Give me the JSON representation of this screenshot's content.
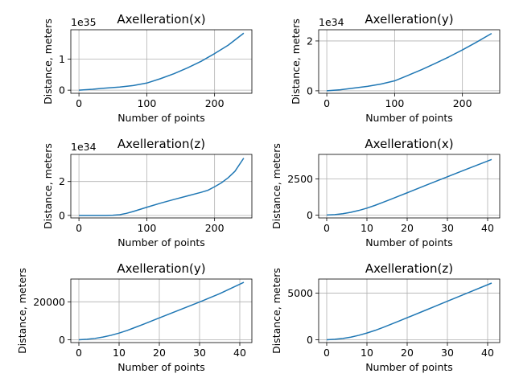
{
  "chart_data": [
    {
      "type": "line",
      "title": "Axelleration(x)",
      "xlabel": "Number of points",
      "ylabel": "Distance, meters",
      "offset_text": "1e35",
      "xlim": [
        -12,
        255
      ],
      "ylim": [
        -0.1,
        1.95
      ],
      "xticks": [
        0,
        100,
        200
      ],
      "yticks": [
        0,
        1
      ],
      "grid": true,
      "color": "#1f77b4",
      "series": [
        {
          "x": [
            0,
            20,
            40,
            60,
            80,
            100,
            120,
            140,
            160,
            180,
            200,
            220,
            243
          ],
          "y": [
            0,
            0.03,
            0.07,
            0.1,
            0.15,
            0.23,
            0.37,
            0.53,
            0.72,
            0.93,
            1.18,
            1.45,
            1.84
          ]
        }
      ]
    },
    {
      "type": "line",
      "title": "Axelleration(y)",
      "xlabel": "Number of points",
      "ylabel": "Distance, meters",
      "offset_text": "1e34",
      "xlim": [
        -12,
        255
      ],
      "ylim": [
        -0.1,
        2.45
      ],
      "xticks": [
        0,
        100,
        200
      ],
      "yticks": [
        0,
        2
      ],
      "grid": true,
      "color": "#1f77b4",
      "series": [
        {
          "x": [
            0,
            20,
            40,
            60,
            80,
            100,
            120,
            140,
            160,
            180,
            200,
            220,
            243
          ],
          "y": [
            0,
            0.04,
            0.11,
            0.18,
            0.27,
            0.4,
            0.62,
            0.85,
            1.1,
            1.36,
            1.64,
            1.94,
            2.3
          ]
        }
      ]
    },
    {
      "type": "line",
      "title": "Axelleration(z)",
      "xlabel": "Number of points",
      "ylabel": "Distance, meters",
      "offset_text": "1e34",
      "xlim": [
        -12,
        255
      ],
      "ylim": [
        -0.15,
        3.6
      ],
      "xticks": [
        0,
        100,
        200
      ],
      "yticks": [
        0,
        2
      ],
      "grid": true,
      "color": "#1f77b4",
      "series": [
        {
          "x": [
            0,
            20,
            40,
            50,
            60,
            70,
            80,
            100,
            120,
            140,
            160,
            180,
            190,
            200,
            210,
            220,
            230,
            243
          ],
          "y": [
            0,
            0,
            0,
            0.01,
            0.04,
            0.12,
            0.23,
            0.48,
            0.72,
            0.94,
            1.15,
            1.36,
            1.48,
            1.69,
            1.92,
            2.22,
            2.6,
            3.38
          ]
        }
      ]
    },
    {
      "type": "line",
      "title": "Axelleration(x)",
      "xlabel": "Number of points",
      "ylabel": "Distance, meters",
      "offset_text": "",
      "xlim": [
        -2,
        43
      ],
      "ylim": [
        -200,
        4200
      ],
      "xticks": [
        0,
        10,
        20,
        30,
        40
      ],
      "yticks": [
        0,
        2500
      ],
      "grid": true,
      "color": "#1f77b4",
      "series": [
        {
          "x": [
            0,
            2,
            4,
            6,
            8,
            10,
            12,
            14,
            16,
            18,
            20,
            25,
            30,
            35,
            41
          ],
          "y": [
            0,
            30,
            90,
            190,
            320,
            480,
            670,
            880,
            1100,
            1320,
            1540,
            2100,
            2650,
            3200,
            3850
          ]
        }
      ]
    },
    {
      "type": "line",
      "title": "Axelleration(y)",
      "xlabel": "Number of points",
      "ylabel": "Distance, meters",
      "offset_text": "",
      "xlim": [
        -2,
        43
      ],
      "ylim": [
        -1500,
        32000
      ],
      "xticks": [
        0,
        10,
        20,
        30,
        40
      ],
      "yticks": [
        0,
        20000
      ],
      "grid": true,
      "color": "#1f77b4",
      "series": [
        {
          "x": [
            0,
            2,
            4,
            6,
            8,
            10,
            12,
            14,
            16,
            18,
            20,
            25,
            30,
            35,
            41
          ],
          "y": [
            0,
            250,
            700,
            1400,
            2350,
            3500,
            4900,
            6500,
            8100,
            9800,
            11500,
            15700,
            19900,
            24300,
            30300
          ]
        }
      ]
    },
    {
      "type": "line",
      "title": "Axelleration(z)",
      "xlabel": "Number of points",
      "ylabel": "Distance, meters",
      "offset_text": "",
      "xlim": [
        -2,
        43
      ],
      "ylim": [
        -300,
        6500
      ],
      "xticks": [
        0,
        10,
        20,
        30,
        40
      ],
      "yticks": [
        0,
        5000
      ],
      "grid": true,
      "color": "#1f77b4",
      "series": [
        {
          "x": [
            0,
            2,
            4,
            6,
            8,
            10,
            12,
            14,
            16,
            18,
            20,
            25,
            30,
            35,
            41
          ],
          "y": [
            0,
            50,
            140,
            280,
            480,
            720,
            1000,
            1320,
            1660,
            2010,
            2360,
            3240,
            4130,
            5010,
            6070
          ]
        }
      ]
    }
  ]
}
